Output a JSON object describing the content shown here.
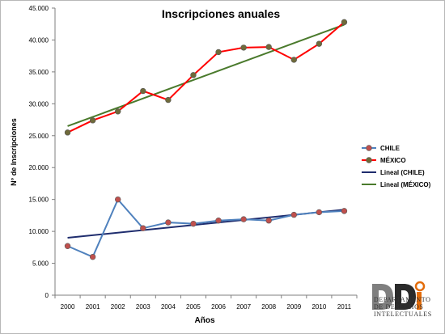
{
  "chart_data": {
    "type": "line",
    "title": "Inscripciones anuales",
    "xlabel": "Años",
    "ylabel": "N° de Inscripciones",
    "ylim": [
      0,
      45000
    ],
    "yticks": [
      0,
      5000,
      10000,
      15000,
      20000,
      25000,
      30000,
      35000,
      40000,
      45000
    ],
    "ytick_labels": [
      "0",
      "5.000",
      "10.000",
      "15.000",
      "20.000",
      "25.000",
      "30.000",
      "35.000",
      "40.000",
      "45.000"
    ],
    "categories": [
      "2000",
      "2001",
      "2002",
      "2003",
      "2004",
      "2005",
      "2006",
      "2007",
      "2008",
      "2009",
      "2010",
      "2011"
    ],
    "grid": false,
    "legend_position": "right",
    "series": [
      {
        "name": "CHILE",
        "color": "#4f81bd",
        "marker_color": "#c0504d",
        "values": [
          7700,
          6000,
          15000,
          10500,
          11400,
          11200,
          11700,
          11900,
          11700,
          12600,
          13000,
          13200
        ]
      },
      {
        "name": "MÉXICO",
        "color": "#ff0000",
        "marker_color": "#6f6a3a",
        "values": [
          25500,
          27400,
          28800,
          32000,
          30600,
          34500,
          38100,
          38800,
          38900,
          36900,
          39400,
          42800
        ]
      }
    ],
    "trendlines": [
      {
        "name": "Lineal (CHILE)",
        "color": "#1f2d6e",
        "start": 9000,
        "end": 13400
      },
      {
        "name": "Lineal (MÉXICO)",
        "color": "#4a7a2c",
        "start": 26500,
        "end": 42400
      }
    ]
  },
  "logo": {
    "mark": "DDI",
    "org_line1": "DEPARTAMENTO",
    "org_line2": "DE DERECHOS",
    "org_line3": "INTELECTUALES",
    "colors": {
      "d1": "#7f7f7f",
      "d2": "#2b2b2b",
      "accent": "#e36c0a"
    }
  }
}
